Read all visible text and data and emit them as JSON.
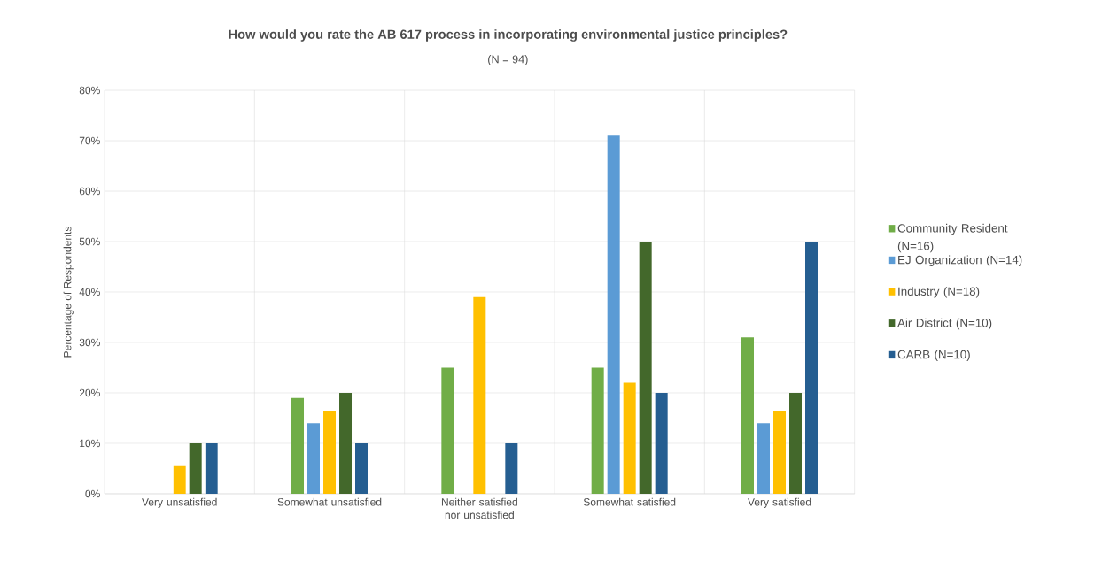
{
  "chart_data": {
    "type": "bar",
    "title": "How would you rate the AB 617 process in incorporating environmental justice principles?",
    "subtitle": "(N = 94)",
    "ylabel": "Percentage of Respondents",
    "categories": [
      "Very unsatisfied",
      "Somewhat unsatisfied",
      "Neither satisfied nor unsatisfied",
      "Somewhat satisfied",
      "Very satisfied"
    ],
    "series": [
      {
        "name": "Community Resident (N=16)",
        "color": "#70ad47",
        "values": [
          0,
          19,
          25,
          25,
          31
        ]
      },
      {
        "name": "EJ Organization (N=14)",
        "color": "#5b9bd5",
        "values": [
          0,
          14,
          0,
          71,
          14
        ]
      },
      {
        "name": "Industry (N=18)",
        "color": "#ffc000",
        "values": [
          5.5,
          16.5,
          39,
          22,
          16.5
        ]
      },
      {
        "name": "Air District (N=10)",
        "color": "#43682b",
        "values": [
          10,
          20,
          0,
          50,
          20
        ]
      },
      {
        "name": "CARB (N=10)",
        "color": "#255e91",
        "values": [
          10,
          10,
          10,
          20,
          50
        ]
      }
    ],
    "ylim": [
      0,
      80
    ],
    "yticks": [
      {
        "value": 0,
        "label": "0%"
      },
      {
        "value": 10,
        "label": "10%"
      },
      {
        "value": 20,
        "label": "20%"
      },
      {
        "value": 30,
        "label": "30%"
      },
      {
        "value": 40,
        "label": "40%"
      },
      {
        "value": 50,
        "label": "50%"
      },
      {
        "value": 60,
        "label": "60%"
      },
      {
        "value": 70,
        "label": "70%"
      },
      {
        "value": 80,
        "label": "80%"
      }
    ],
    "grid": true,
    "legend": "right"
  }
}
